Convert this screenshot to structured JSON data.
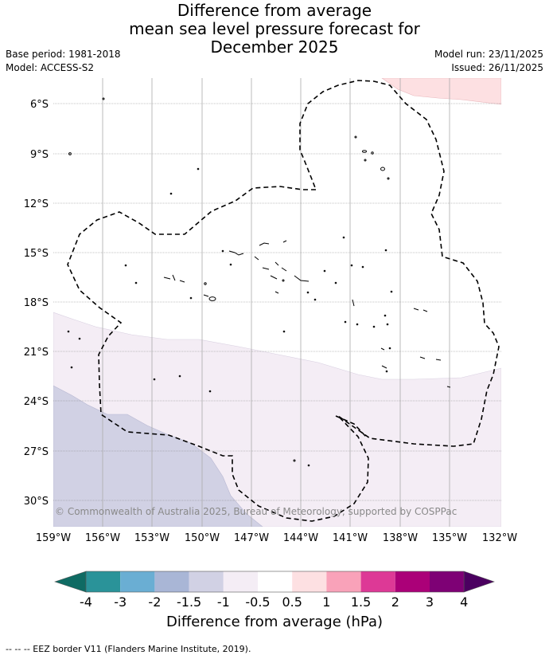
{
  "header": {
    "title_lines": [
      "Difference from average",
      "mean sea level pressure forecast for",
      "December 2025"
    ],
    "base_period": "Base period: 1981-2018",
    "model": "Model: ACCESS-S2",
    "model_run": "Model run: 23/11/2025",
    "issued": "Issued: 26/11/2025"
  },
  "map": {
    "lat_labels": [
      "6°S",
      "9°S",
      "12°S",
      "15°S",
      "18°S",
      "21°S",
      "24°S",
      "27°S",
      "30°S"
    ],
    "lon_labels": [
      "159°W",
      "156°W",
      "153°W",
      "150°W",
      "147°W",
      "144°W",
      "141°W",
      "138°W",
      "135°W",
      "132°W"
    ],
    "copyright": "© Commonwealth of Australia 2025, Bureau of Meteorology, supported by COSPPac"
  },
  "colorbar": {
    "colors": [
      "#0f6b63",
      "#2a9399",
      "#6aaed3",
      "#a9b6d6",
      "#d1d1e4",
      "#f4edf5",
      "#ffffff",
      "#fde0e2",
      "#f9a2b9",
      "#dd3996",
      "#ab0078",
      "#7e0175",
      "#4b0060"
    ],
    "tick_labels": [
      "-4",
      "-3",
      "-2",
      "-1.5",
      "-1",
      "-0.5",
      "0.5",
      "1",
      "1.5",
      "2",
      "3",
      "4"
    ],
    "title": "Difference from average (hPa)"
  },
  "legend": {
    "eez": "--  --  -- EEZ border V11 (Flanders Marine Institute, 2019)."
  }
}
